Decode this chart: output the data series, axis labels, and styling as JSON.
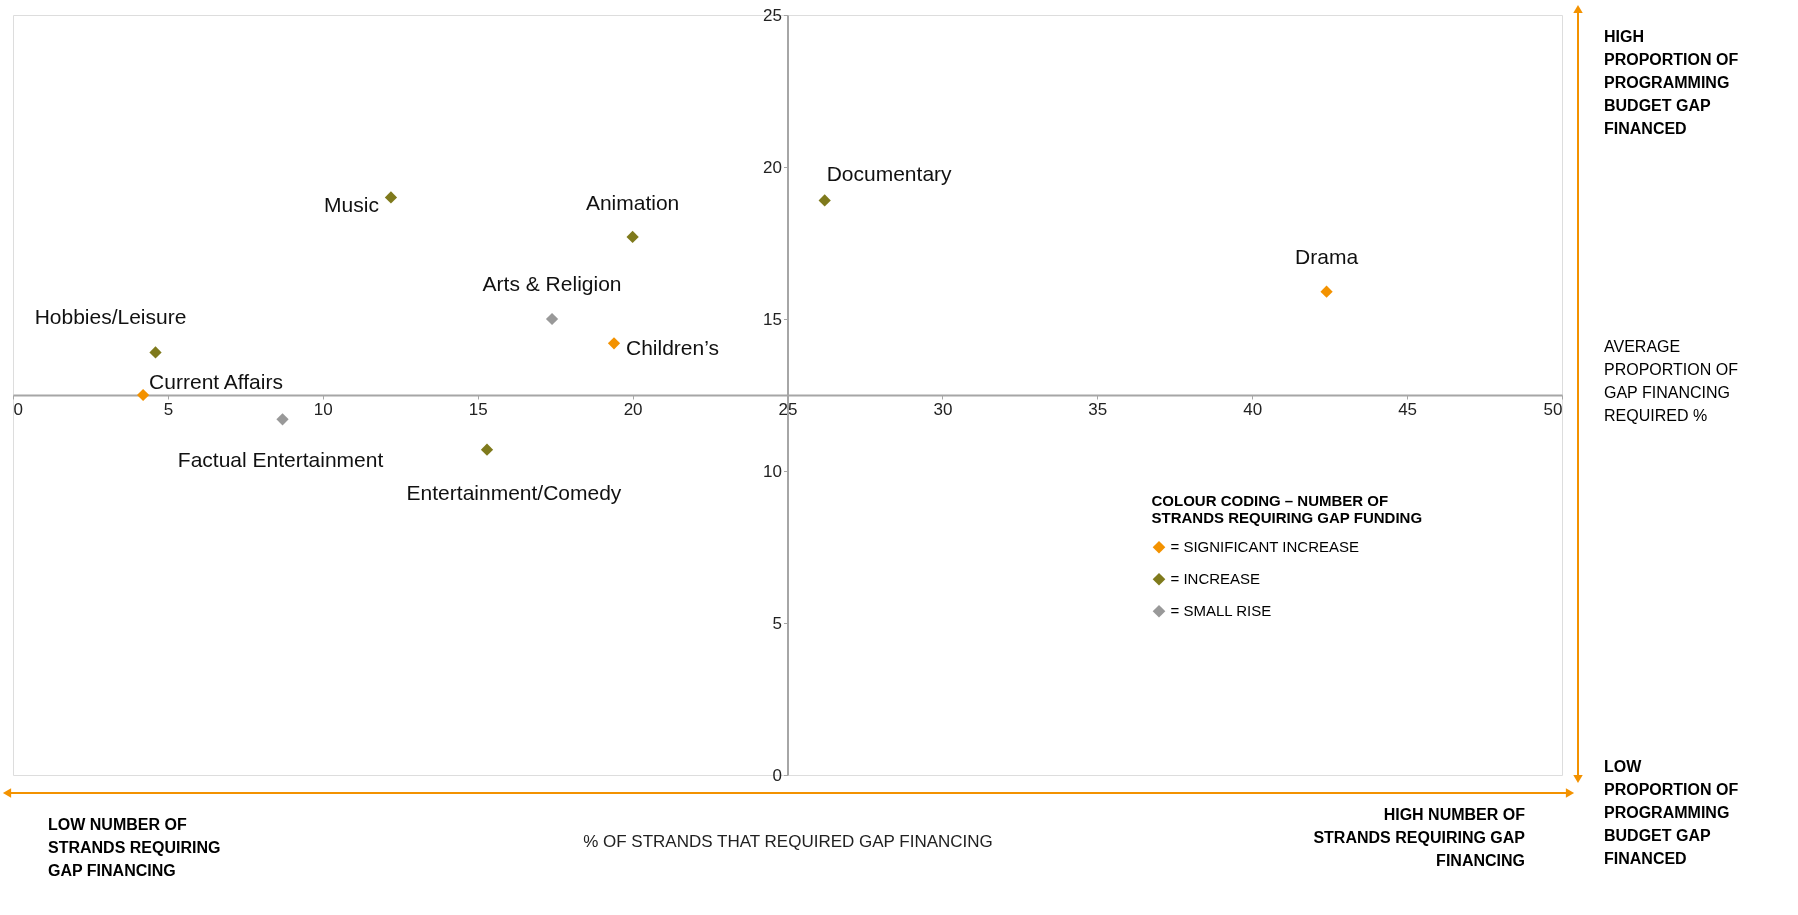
{
  "chart_data": {
    "type": "scatter",
    "xlabel": "% OF STRANDS THAT REQUIRED GAP FINANCING",
    "legend_title": "COLOUR CODING – NUMBER OF STRANDS REQUIRING GAP FUNDING",
    "xlim": [
      0,
      50
    ],
    "xticks": [
      0,
      5,
      10,
      15,
      20,
      25,
      30,
      35,
      40,
      45,
      50
    ],
    "ylim": [
      0,
      25
    ],
    "yticks": [
      0,
      5,
      10,
      15,
      20,
      25
    ],
    "grid": false,
    "legend": "bottom right",
    "marker": "diamond",
    "series": [
      {
        "name": "= SIGNIFICANT INCREASE",
        "color": "#f39200",
        "x": [
          42.4,
          19.4,
          4.2
        ],
        "values": [
          15.9,
          14.2,
          12.5
        ]
      },
      {
        "name": "= INCREASE",
        "color": "#7f7a1c",
        "x": [
          12.2,
          20.0,
          26.2,
          4.6,
          15.3
        ],
        "values": [
          19.0,
          17.7,
          18.9,
          13.9,
          10.7
        ]
      },
      {
        "name": "= SMALL RISE",
        "color": "#999999",
        "x": [
          17.4,
          8.7
        ],
        "values": [
          15.0,
          11.7
        ]
      }
    ],
    "annotations": [
      {
        "text": "Music",
        "x": 12.2,
        "y": 19.0
      },
      {
        "text": "Animation",
        "x": 20.0,
        "y": 17.7
      },
      {
        "text": "Documentary",
        "x": 26.2,
        "y": 18.9
      },
      {
        "text": "Drama",
        "x": 42.4,
        "y": 15.9
      },
      {
        "text": "Arts & Religion",
        "x": 17.4,
        "y": 15.0
      },
      {
        "text": "Children’s",
        "x": 19.4,
        "y": 14.2
      },
      {
        "text": "Hobbies/Leisure",
        "x": 4.6,
        "y": 13.9
      },
      {
        "text": "Current Affairs",
        "x": 4.2,
        "y": 12.5
      },
      {
        "text": "Factual Entertainment",
        "x": 8.7,
        "y": 11.7
      },
      {
        "text": "Entertainment/Comedy",
        "x": 15.3,
        "y": 10.7
      },
      "HIGH PROPORTION OF PROGRAMMING BUDGET GAP FINANCED",
      "AVERAGE PROPORTION OF GAP FINANCING REQUIRED %",
      "LOW PROPORTION OF PROGRAMMING BUDGET GAP FINANCED",
      "LOW NUMBER OF STRANDS REQUIRING GAP FINANCING",
      "HIGH NUMBER OF STRANDS REQUIRING GAP FINANCING"
    ]
  }
}
